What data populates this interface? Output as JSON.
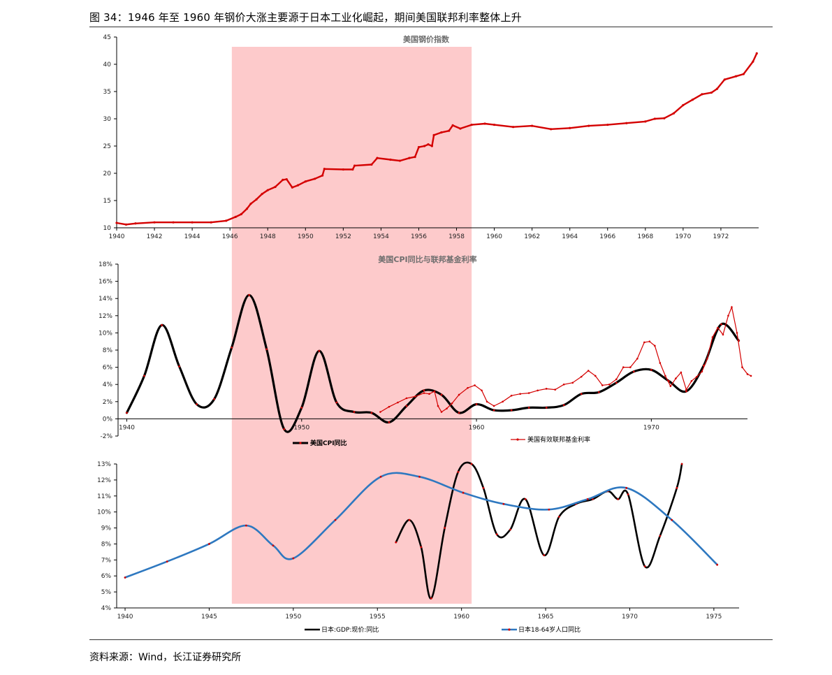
{
  "figure": {
    "title": "图 34：1946 年至 1960 年钢价大涨主要源于日本工业化崛起，期间美国联邦利率整体上升",
    "source": "资料来源：Wind，长江证券研究所",
    "highlight_period": [
      1946.1,
      1958.8
    ]
  },
  "colors": {
    "red": "#d40000",
    "blue": "#2e78c0",
    "black": "#000000",
    "shade": "#fdcacb",
    "axis": "#000000"
  },
  "chart_data": [
    {
      "type": "line",
      "title": "美国钢价指数",
      "xlim": [
        1940,
        1974
      ],
      "ylim": [
        10,
        45
      ],
      "xticks": [
        "1940",
        "1942",
        "1944",
        "1946",
        "1948",
        "1950",
        "1952",
        "1954",
        "1956",
        "1958",
        "1960",
        "1962",
        "1964",
        "1966",
        "1968",
        "1970",
        "1972"
      ],
      "yticks": [
        "10",
        "15",
        "20",
        "25",
        "30",
        "35",
        "40",
        "45"
      ],
      "series": [
        {
          "name": "",
          "color": "#d40000",
          "x": [
            1940,
            1940.5,
            1941,
            1942,
            1943,
            1944,
            1945,
            1945.8,
            1946.3,
            1946.6,
            1946.9,
            1947.1,
            1947.4,
            1947.7,
            1948.0,
            1948.4,
            1948.8,
            1949.0,
            1949.3,
            1949.6,
            1950.0,
            1950.5,
            1950.9,
            1951.0,
            1952.0,
            1952.5,
            1952.6,
            1953.5,
            1953.8,
            1954.5,
            1955.0,
            1955.5,
            1955.8,
            1956.0,
            1956.3,
            1956.5,
            1956.7,
            1956.8,
            1957.2,
            1957.6,
            1957.8,
            1958.2,
            1958.8,
            1959.5,
            1960,
            1961,
            1962,
            1963,
            1964,
            1965,
            1966,
            1967,
            1968,
            1968.5,
            1969,
            1969.5,
            1970,
            1970.5,
            1971,
            1971.5,
            1971.8,
            1972.2,
            1972.8,
            1973.2,
            1973.7,
            1973.9
          ],
          "y": [
            10.9,
            10.6,
            10.8,
            11.0,
            11.0,
            11.0,
            11.0,
            11.3,
            12.0,
            12.5,
            13.5,
            14.4,
            15.2,
            16.2,
            16.9,
            17.5,
            18.8,
            18.9,
            17.4,
            17.8,
            18.5,
            19.0,
            19.6,
            20.8,
            20.7,
            20.7,
            21.4,
            21.6,
            22.8,
            22.5,
            22.3,
            22.8,
            23.0,
            24.8,
            25.0,
            25.3,
            25.0,
            27.0,
            27.5,
            27.8,
            28.8,
            28.2,
            28.9,
            29.1,
            28.9,
            28.5,
            28.7,
            28.1,
            28.3,
            28.7,
            28.9,
            29.2,
            29.5,
            30.0,
            30.1,
            31.0,
            32.5,
            33.5,
            34.5,
            34.8,
            35.5,
            37.2,
            37.8,
            38.2,
            40.5,
            42.0
          ]
        }
      ]
    },
    {
      "type": "line",
      "title": "美国CPI同比与联邦基金利率",
      "xlim": [
        1939.5,
        1975.5
      ],
      "ylim": [
        -2,
        18
      ],
      "xticks": [
        "1940",
        "1950",
        "1960",
        "1970"
      ],
      "yticks": [
        "-2%",
        "0%",
        "2%",
        "4%",
        "6%",
        "8%",
        "10%",
        "12%",
        "14%",
        "16%",
        "18%"
      ],
      "series": [
        {
          "name": "美国CPI同比",
          "color": "#000000",
          "x": [
            1940,
            1941,
            1942,
            1943,
            1944,
            1945,
            1946,
            1947,
            1948,
            1949,
            1950,
            1951,
            1952,
            1953,
            1954,
            1955,
            1956,
            1957,
            1958,
            1959,
            1960,
            1961,
            1962,
            1963,
            1964,
            1965,
            1966,
            1967,
            1968,
            1969,
            1970,
            1971,
            1972,
            1973,
            1974,
            1975
          ],
          "y": [
            0.7,
            5.0,
            10.9,
            6.1,
            1.7,
            2.3,
            8.3,
            14.4,
            8.1,
            -1.2,
            1.3,
            7.9,
            1.9,
            0.8,
            0.7,
            -0.4,
            1.5,
            3.3,
            2.8,
            0.7,
            1.7,
            1.0,
            1.0,
            1.3,
            1.3,
            1.6,
            2.9,
            3.1,
            4.2,
            5.5,
            5.7,
            4.4,
            3.2,
            6.2,
            11.0,
            9.1
          ]
        },
        {
          "name": "美国有效联邦基金利率",
          "color": "#d40000",
          "x": [
            1954.5,
            1955,
            1955.5,
            1956,
            1956.5,
            1957,
            1957.3,
            1957.6,
            1957.8,
            1958,
            1958.3,
            1958.6,
            1959,
            1959.5,
            1959.9,
            1960.3,
            1960.6,
            1961,
            1961.5,
            1962,
            1962.5,
            1963,
            1963.5,
            1964,
            1964.5,
            1965,
            1965.5,
            1966,
            1966.4,
            1966.8,
            1967.2,
            1967.6,
            1968,
            1968.4,
            1968.8,
            1969.2,
            1969.6,
            1969.9,
            1970.2,
            1970.5,
            1970.8,
            1971.1,
            1971.4,
            1971.7,
            1972,
            1972.3,
            1972.6,
            1972.9,
            1973.2,
            1973.5,
            1973.8,
            1974.1,
            1974.4,
            1974.6,
            1974.9,
            1975.2,
            1975.5,
            1975.7
          ],
          "y": [
            0.8,
            1.4,
            1.9,
            2.4,
            2.6,
            3.0,
            2.9,
            3.2,
            1.5,
            0.8,
            1.2,
            1.8,
            2.8,
            3.6,
            3.9,
            3.3,
            2.0,
            1.5,
            2.0,
            2.7,
            2.9,
            3.0,
            3.3,
            3.5,
            3.4,
            4.0,
            4.2,
            4.9,
            5.6,
            5.0,
            3.9,
            4.0,
            4.6,
            6.0,
            6.0,
            7.0,
            8.9,
            9.0,
            8.5,
            6.5,
            5.0,
            3.8,
            4.7,
            5.4,
            3.4,
            4.4,
            4.9,
            5.5,
            7.0,
            9.5,
            10.6,
            9.8,
            12.0,
            13.0,
            10.0,
            6.0,
            5.2,
            5.0
          ]
        }
      ]
    },
    {
      "type": "line",
      "title": "",
      "xlim": [
        1939.5,
        1976.5
      ],
      "ylim": [
        4,
        13
      ],
      "xticks": [
        "1940",
        "1945",
        "1950",
        "1955",
        "1960",
        "1965",
        "1970",
        "1975"
      ],
      "yticks": [
        "4%",
        "5%",
        "6%",
        "7%",
        "8%",
        "9%",
        "10%",
        "11%",
        "12%",
        "13%"
      ],
      "series": [
        {
          "name": "日本:GDP:现价:同比",
          "color": "#000000",
          "x": [
            1956.1,
            1956.9,
            1957.6,
            1958.2,
            1959.0,
            1959.8,
            1960.6,
            1961.3,
            1962.1,
            1962.9,
            1963.8,
            1964.9,
            1965.8,
            1966.8,
            1967.8,
            1968.7,
            1969.3,
            1969.9,
            1970.9,
            1971.8,
            1972.8,
            1973.1
          ],
          "y": [
            8.1,
            9.5,
            7.8,
            4.6,
            9.0,
            12.5,
            13.0,
            11.5,
            8.6,
            8.9,
            10.8,
            7.3,
            9.7,
            10.5,
            10.8,
            11.3,
            10.8,
            11.1,
            6.6,
            8.5,
            11.5,
            13.0
          ]
        },
        {
          "name": "日本18-64岁人口同比",
          "color": "#2e78c0",
          "x": [
            1940,
            1942.5,
            1945,
            1947.2,
            1948.8,
            1950,
            1952.5,
            1955.2,
            1957.5,
            1960.1,
            1962.5,
            1965.2,
            1967.5,
            1969.8,
            1972.5,
            1975.2
          ],
          "y": [
            5.9,
            6.9,
            8.0,
            9.15,
            7.9,
            7.1,
            9.5,
            12.2,
            12.2,
            11.2,
            10.5,
            10.15,
            10.8,
            11.5,
            9.5,
            6.7
          ]
        }
      ]
    }
  ]
}
